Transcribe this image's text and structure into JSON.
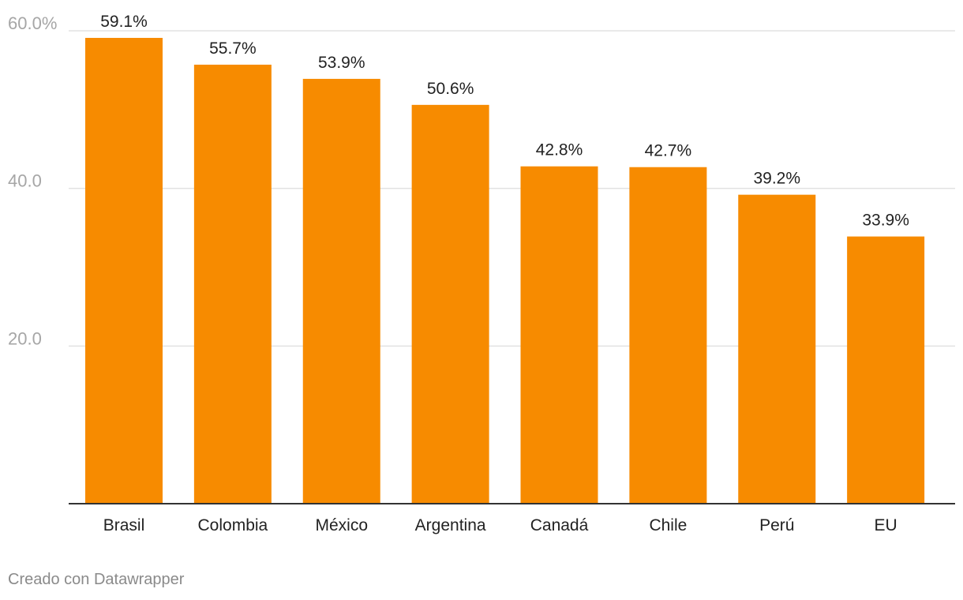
{
  "chart_data": {
    "type": "bar",
    "categories": [
      "Brasil",
      "Colombia",
      "México",
      "Argentina",
      "Canadá",
      "Chile",
      "Perú",
      "EU"
    ],
    "values": [
      59.1,
      55.7,
      53.9,
      50.6,
      42.8,
      42.7,
      39.2,
      33.9
    ],
    "value_labels": [
      "59.1%",
      "55.7%",
      "53.9%",
      "50.6%",
      "42.8%",
      "42.7%",
      "39.2%",
      "33.9%"
    ],
    "y_ticks": [
      20,
      40,
      60
    ],
    "y_tick_labels": [
      "20.0",
      "40.0",
      "60.0%"
    ],
    "ylim": [
      0,
      60
    ],
    "grid": true,
    "bar_color": "#f78b00",
    "title": "",
    "xlabel": "",
    "ylabel": ""
  },
  "footer": {
    "credit": "Creado con Datawrapper"
  }
}
